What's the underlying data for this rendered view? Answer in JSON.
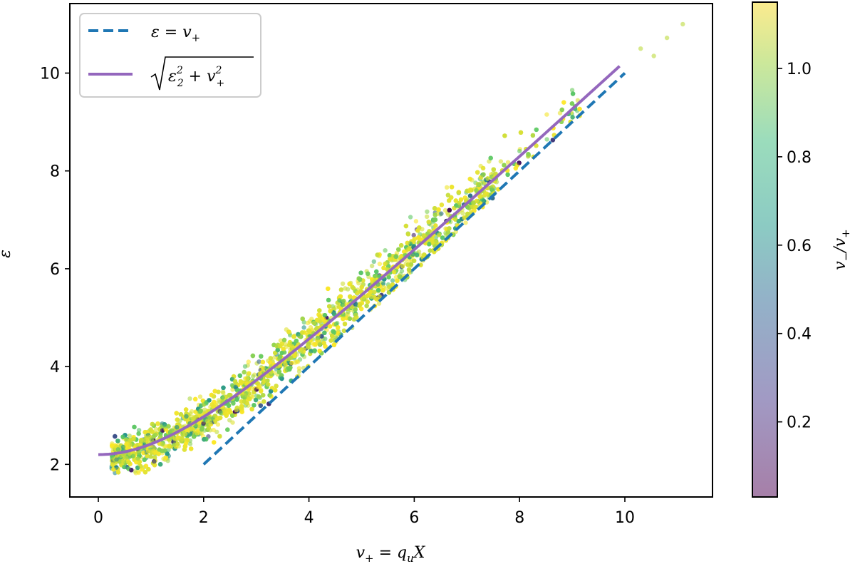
{
  "chart_data": {
    "type": "scatter",
    "title": "",
    "xlabel": "v_+ = q_u X",
    "ylabel": "ε",
    "xlim": [
      -0.55,
      11.65
    ],
    "ylim": [
      1.35,
      11.5
    ],
    "xticks": [
      0,
      2,
      4,
      6,
      8,
      10
    ],
    "yticks": [
      2,
      4,
      6,
      8,
      10
    ],
    "grid": false,
    "legend_position": "upper left",
    "colorbar": {
      "label": "v_-/v_+",
      "range": [
        0.03,
        1.15
      ],
      "ticks": [
        0.2,
        0.4,
        0.6,
        0.8,
        1.0
      ],
      "colormap": "viridis (alpha 0.5)"
    },
    "series": [
      {
        "name": "ε = v_+",
        "kind": "line",
        "style": "dashed",
        "color": "#1f77b4",
        "x": [
          2,
          10
        ],
        "y": [
          2,
          10
        ]
      },
      {
        "name": "√(ε_2² + v_+²)",
        "kind": "line",
        "style": "solid",
        "color": "#9467bd",
        "epsilon_2": 2.2,
        "x": [
          0,
          1,
          2,
          3,
          4,
          5,
          6,
          7,
          8,
          9,
          9.9
        ],
        "y": [
          2.2,
          2.42,
          2.97,
          3.72,
          4.56,
          5.46,
          6.39,
          7.34,
          8.3,
          9.27,
          10.14
        ]
      },
      {
        "name": "samples",
        "kind": "scatter",
        "description": "~5000 points scattered around the solid curve, spread ~±0.6 in ε, x range 0.2–11.1, colored by v_-/v_+ (mostly ~0.9–1.15, yellow)",
        "outliers": [
          {
            "x": 10.3,
            "y": 10.5
          },
          {
            "x": 10.55,
            "y": 10.35
          },
          {
            "x": 10.8,
            "y": 10.72
          },
          {
            "x": 11.1,
            "y": 11.0
          }
        ]
      }
    ]
  },
  "legend": {
    "items": [
      {
        "label": "ε = v₊",
        "color": "#1f77b4",
        "style": "dashed"
      },
      {
        "label": "√(ε₂² + v₊²)",
        "color": "#9467bd",
        "style": "solid"
      }
    ]
  },
  "axes": {
    "xlabel_main": "v",
    "xlabel_sub": "+",
    "xlabel_eq": " = q",
    "xlabel_sub2": "u",
    "xlabel_end": "X",
    "ylabel": "ε",
    "xtick_labels": [
      "0",
      "2",
      "4",
      "6",
      "8",
      "10"
    ],
    "ytick_labels": [
      "2",
      "4",
      "6",
      "8",
      "10"
    ]
  },
  "colorbar": {
    "tick_labels": [
      "0.2",
      "0.4",
      "0.6",
      "0.8",
      "1.0"
    ],
    "label_main": "v",
    "label_sub1": "−",
    "label_slash": "/v",
    "label_sub2": "+"
  }
}
